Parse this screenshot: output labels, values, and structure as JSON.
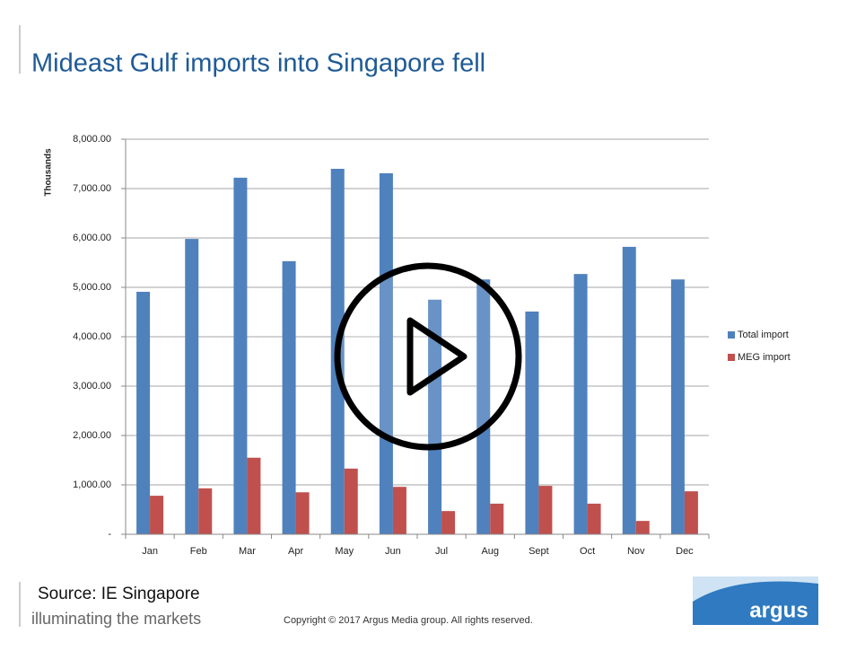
{
  "chart_data": {
    "type": "bar",
    "title": "Mideast Gulf imports into Singapore fell",
    "y_label": "Thousands",
    "categories": [
      "Jan",
      "Feb",
      "Mar",
      "Apr",
      "May",
      "Jun",
      "Jul",
      "Aug",
      "Sept",
      "Oct",
      "Nov",
      "Dec"
    ],
    "series": [
      {
        "name": "Total import",
        "color": "#4f81bd",
        "values": [
          4910,
          5980,
          7220,
          5530,
          7400,
          7310,
          4750,
          5160,
          4510,
          5270,
          5820,
          5160
        ]
      },
      {
        "name": "MEG import",
        "color": "#c0504d",
        "values": [
          780,
          930,
          1550,
          850,
          1330,
          960,
          470,
          620,
          980,
          620,
          270,
          870
        ]
      }
    ],
    "ylim": [
      0,
      8000
    ],
    "yticks": [
      {
        "value": 0,
        "label": "-"
      },
      {
        "value": 1000,
        "label": "1,000.00"
      },
      {
        "value": 2000,
        "label": "2,000.00"
      },
      {
        "value": 3000,
        "label": "3,000.00"
      },
      {
        "value": 4000,
        "label": "4,000.00"
      },
      {
        "value": 5000,
        "label": "5,000.00"
      },
      {
        "value": 6000,
        "label": "6,000.00"
      },
      {
        "value": 7000,
        "label": "7,000.00"
      },
      {
        "value": 8000,
        "label": "8,000.00"
      }
    ],
    "grid": true,
    "legend": "right"
  },
  "slide": {
    "source": "Source: IE Singapore",
    "tagline": "illuminating the markets",
    "copyright": "Copyright © 2017 Argus Media group. All rights reserved.",
    "logo": "argus"
  }
}
